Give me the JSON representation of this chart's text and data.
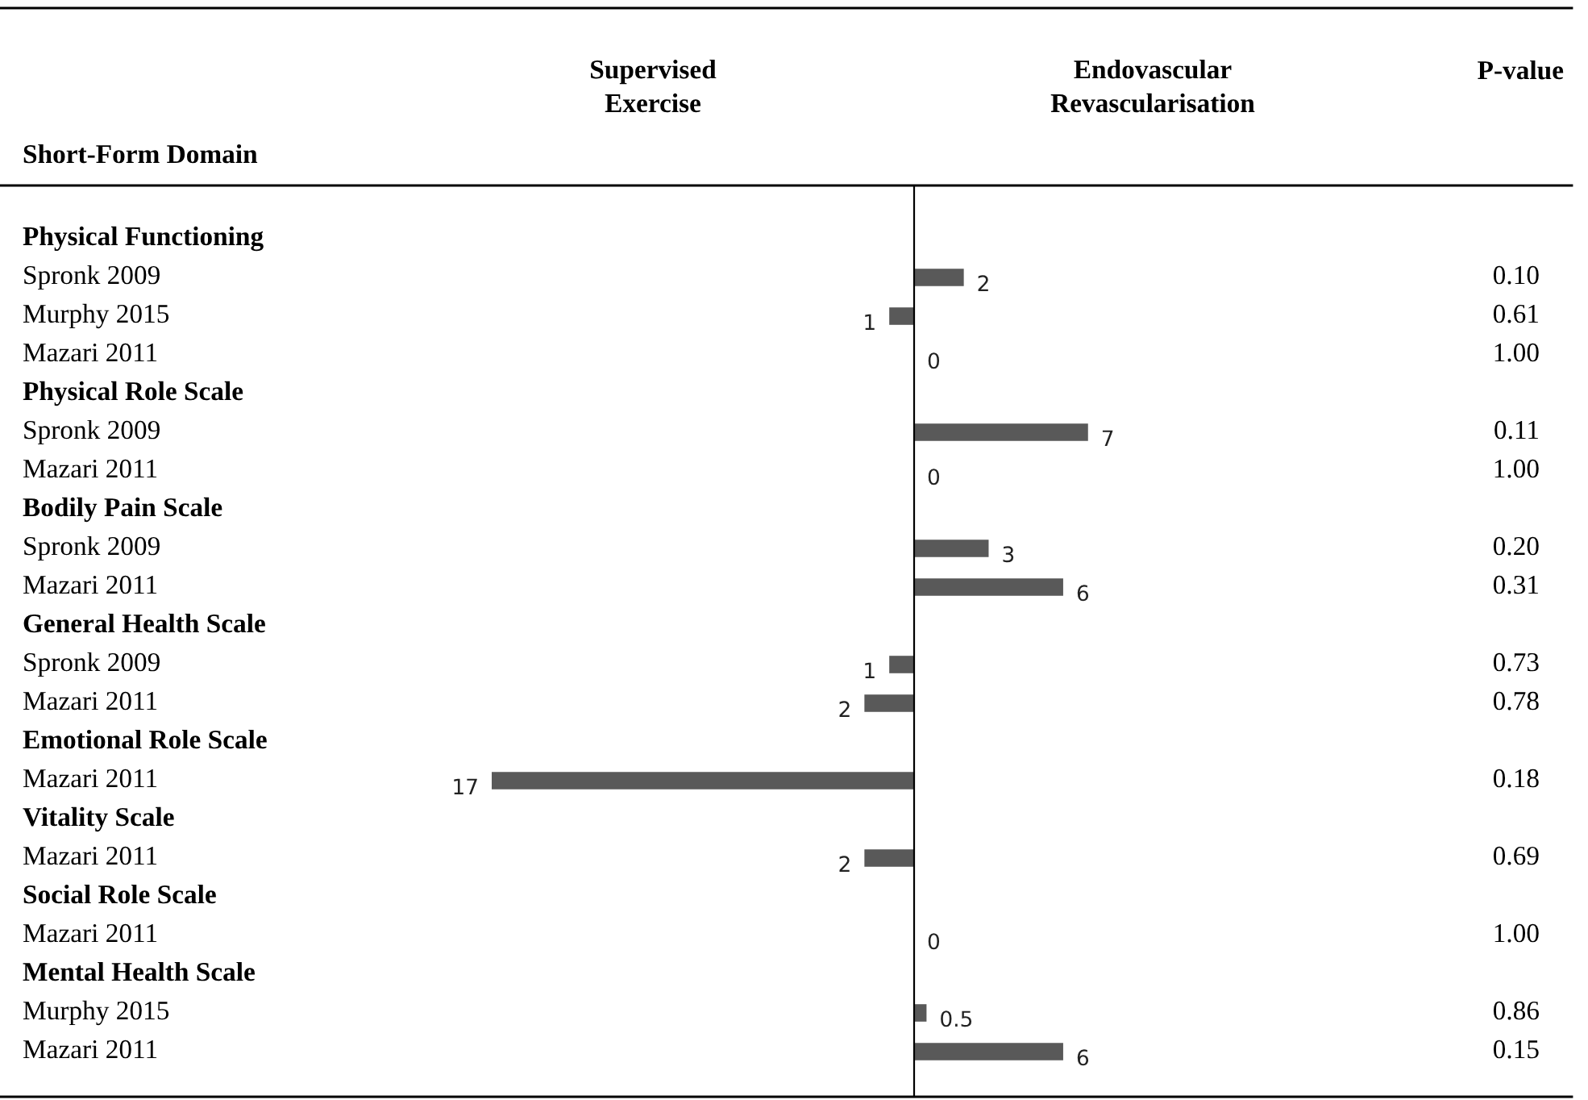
{
  "chart_data": {
    "type": "bar",
    "orientation": "horizontal",
    "ylabel": "Short-Form Domain",
    "categories": [
      "Physical Functioning",
      "Spronk 2009",
      "Murphy 2015",
      "Mazari 2011",
      "Physical Role Scale",
      "Spronk 2009",
      "Mazari 2011",
      "Bodily Pain Scale",
      "Spronk 2009",
      "Mazari 2011",
      "General Health Scale",
      "Spronk 2009",
      "Mazari 2011",
      "Emotional Role Scale",
      "Mazari 2011",
      "Vitality Scale",
      "Mazari 2011",
      "Social Role Scale",
      "Mazari 2011",
      "Mental Health Scale",
      "Murphy 2015",
      "Mazari 2011"
    ],
    "values": [
      null,
      2,
      -1,
      0,
      null,
      7,
      0,
      null,
      3,
      6,
      null,
      -1,
      -2,
      null,
      -17,
      null,
      -2,
      null,
      0,
      null,
      0.5,
      6
    ],
    "value_labels": [
      null,
      "2",
      null,
      "0",
      null,
      "7",
      "0",
      null,
      "3",
      "6",
      null,
      null,
      null,
      null,
      null,
      null,
      null,
      null,
      "0",
      null,
      "0.5",
      "6"
    ],
    "color": "#595959",
    "annotations": [
      "0.10",
      "0.61",
      "1.00",
      "0.11",
      "1.00",
      "0.20",
      "0.31",
      "0.73",
      "0.78",
      "0.18",
      "0.69",
      "1.00",
      "0.86",
      "0.15",
      "Supervised\nExercise",
      "Endovascular\nRevascularisation",
      "P-value",
      "1",
      "1",
      "2",
      "17",
      "2"
    ]
  }
}
